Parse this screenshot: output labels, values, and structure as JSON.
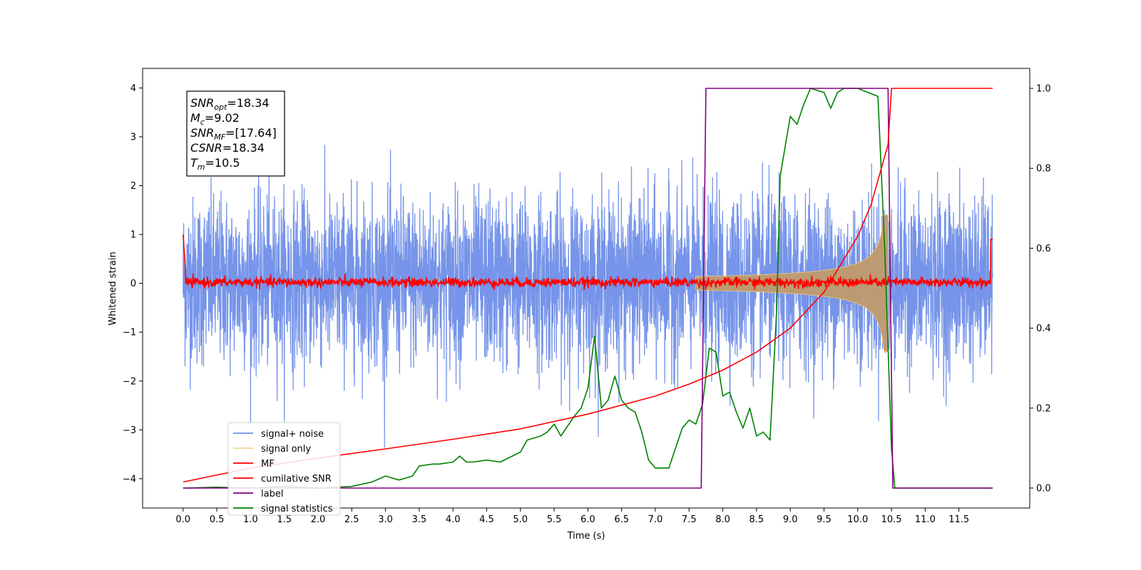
{
  "chart_data": {
    "type": "line",
    "xlabel": "Time (s)",
    "ylabel": "Whitened strain",
    "xlim": [
      -0.6,
      12.55
    ],
    "ylim": [
      -4.6,
      4.4
    ],
    "ylim_right": [
      -0.05,
      1.05
    ],
    "x_ticks": [
      "0.0",
      "0.5",
      "1.0",
      "1.5",
      "2.0",
      "2.5",
      "3.0",
      "3.5",
      "4.0",
      "4.5",
      "5.0",
      "5.5",
      "6.0",
      "6.5",
      "7.0",
      "7.5",
      "8.0",
      "8.5",
      "9.0",
      "9.5",
      "10.0",
      "10.5",
      "11.0",
      "11.5"
    ],
    "y_ticks_left": [
      "4",
      "3",
      "2",
      "1",
      "0",
      "−1",
      "−2",
      "−3",
      "−4"
    ],
    "y_ticks_right": [
      "1.0",
      "0.8",
      "0.6",
      "0.4",
      "0.2",
      "0.0"
    ],
    "grid": false,
    "legend_position": "lower-left",
    "annotation": {
      "snr_opt": {
        "main": "SNR",
        "sub": "opt",
        "value": "=18.34"
      },
      "mc": {
        "main": "M",
        "sub": "c",
        "value": "=9.02"
      },
      "snr_mf": {
        "main": "SNR",
        "sub": "MF",
        "value": "=[17.64]"
      },
      "csnr": {
        "main": "CSNR",
        "sub": "",
        "value": "=18.34"
      },
      "tm": {
        "main": "T",
        "sub": "m",
        "value": "=10.5"
      }
    },
    "series": [
      {
        "name": "signal+ noise",
        "color": "#6f8ee8",
        "axis": "left",
        "noise_std": 0.85,
        "x_range": [
          0.0,
          12.0
        ]
      },
      {
        "name": "signal only",
        "color": "#f5c97a",
        "axis": "left",
        "envelope": {
          "t_start": 7.6,
          "t_merge": 10.45,
          "peak_amp": 1.4
        }
      },
      {
        "name": "MF",
        "color": "#ff0000",
        "axis": "left",
        "baseline": 0.02,
        "noise_std": 0.05
      },
      {
        "name": "cumilative SNR",
        "color": "#ff0000",
        "axis": "right",
        "x": [
          0.0,
          1.0,
          2.0,
          3.0,
          4.0,
          5.0,
          6.0,
          7.0,
          7.5,
          8.0,
          8.5,
          9.0,
          9.5,
          10.0,
          10.2,
          10.35,
          10.45,
          10.5,
          12.0
        ],
        "y": [
          0.015,
          0.05,
          0.075,
          0.098,
          0.122,
          0.148,
          0.185,
          0.23,
          0.26,
          0.295,
          0.34,
          0.4,
          0.49,
          0.63,
          0.71,
          0.8,
          0.86,
          1.0,
          1.0
        ]
      },
      {
        "name": "label",
        "color": "#800080",
        "axis": "right",
        "x": [
          0.0,
          7.68,
          7.75,
          10.45,
          10.52,
          12.0
        ],
        "y": [
          0.0,
          0.0,
          1.0,
          1.0,
          0.0,
          0.0
        ]
      },
      {
        "name": "signal statistics",
        "color": "#008000",
        "axis": "right",
        "x": [
          0.0,
          0.5,
          1.0,
          1.5,
          2.0,
          2.5,
          2.8,
          3.0,
          3.2,
          3.4,
          3.5,
          3.7,
          3.8,
          4.0,
          4.1,
          4.2,
          4.3,
          4.5,
          4.7,
          5.0,
          5.1,
          5.3,
          5.4,
          5.5,
          5.6,
          5.8,
          5.9,
          6.0,
          6.1,
          6.2,
          6.3,
          6.4,
          6.5,
          6.6,
          6.7,
          6.8,
          6.9,
          7.0,
          7.2,
          7.4,
          7.5,
          7.6,
          7.7,
          7.8,
          7.9,
          8.0,
          8.1,
          8.2,
          8.3,
          8.4,
          8.5,
          8.6,
          8.7,
          8.8,
          8.85,
          9.0,
          9.1,
          9.2,
          9.3,
          9.5,
          9.6,
          9.7,
          9.8,
          10.0,
          10.3,
          10.4,
          10.5,
          10.55,
          10.6,
          11.0,
          11.5,
          12.0
        ],
        "y": [
          0.0,
          0.002,
          0.0,
          0.004,
          0.0,
          0.004,
          0.015,
          0.03,
          0.02,
          0.03,
          0.055,
          0.06,
          0.06,
          0.065,
          0.08,
          0.065,
          0.065,
          0.07,
          0.065,
          0.09,
          0.12,
          0.13,
          0.14,
          0.16,
          0.13,
          0.18,
          0.2,
          0.25,
          0.38,
          0.2,
          0.22,
          0.28,
          0.22,
          0.2,
          0.19,
          0.14,
          0.07,
          0.05,
          0.05,
          0.15,
          0.17,
          0.16,
          0.21,
          0.35,
          0.34,
          0.23,
          0.24,
          0.19,
          0.15,
          0.2,
          0.13,
          0.14,
          0.12,
          0.45,
          0.78,
          0.93,
          0.91,
          0.96,
          1.0,
          0.99,
          0.95,
          0.99,
          1.0,
          1.0,
          0.98,
          0.6,
          0.1,
          0.0,
          0.0,
          0.0,
          0.0,
          0.0
        ]
      }
    ]
  }
}
